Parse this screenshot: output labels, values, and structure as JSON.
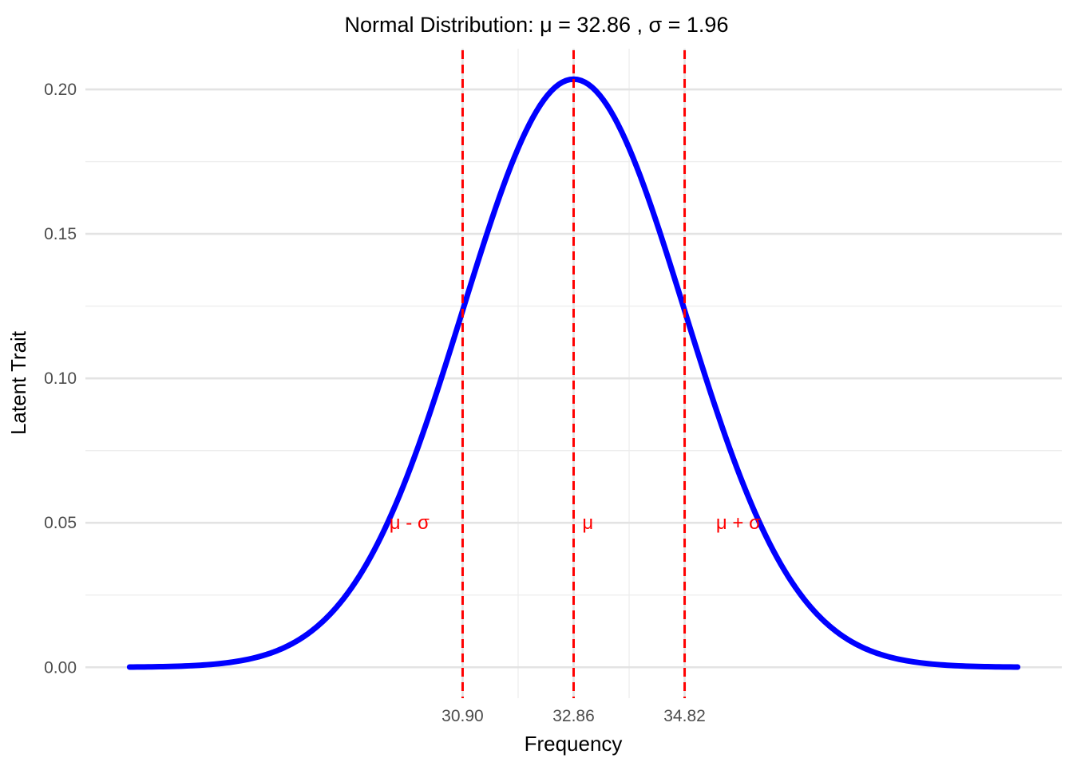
{
  "chart_data": {
    "type": "line",
    "title": "Normal Distribution: μ = 32.86 , σ = 1.96",
    "xlabel": "Frequency",
    "ylabel": "Latent Trait",
    "legend": "none",
    "background": "#FFFFFF",
    "grid": {
      "major_color": "#E3E3E3",
      "minor_color": "#EDEDED",
      "major_width": 2.6,
      "minor_width": 1.3
    },
    "tick_label_color": "#4D4D4D",
    "series": [
      {
        "name": "normal-pdf-curve",
        "color": "#0000FF",
        "line_width": 7,
        "distribution": {
          "mu": 32.86,
          "sigma": 1.96,
          "peak_density": 0.2035
        },
        "x_range": [
          25.02,
          40.7
        ]
      }
    ],
    "x_axis": {
      "range": [
        24.24,
        41.48
      ],
      "ticks": [
        {
          "value": 30.9,
          "label": "30.90"
        },
        {
          "value": 32.86,
          "label": "32.86"
        },
        {
          "value": 34.82,
          "label": "34.82"
        }
      ],
      "minor_ticks": [
        31.88,
        33.84
      ]
    },
    "y_axis": {
      "range": [
        -0.0107,
        0.2141
      ],
      "ticks": [
        {
          "value": 0.0,
          "label": "0.00"
        },
        {
          "value": 0.05,
          "label": "0.05"
        },
        {
          "value": 0.1,
          "label": "0.10"
        },
        {
          "value": 0.15,
          "label": "0.15"
        },
        {
          "value": 0.2,
          "label": "0.20"
        }
      ],
      "minor_ticks": [
        0.025,
        0.075,
        0.125,
        0.175
      ]
    },
    "vlines": {
      "color": "#FF0000",
      "width": 3,
      "dash": [
        11,
        7
      ],
      "positions": [
        {
          "x": 30.9,
          "name": "mu-minus-sigma"
        },
        {
          "x": 32.86,
          "name": "mu"
        },
        {
          "x": 34.82,
          "name": "mu-plus-sigma"
        }
      ]
    },
    "annotations": {
      "color": "#FF0000",
      "items": [
        {
          "text": "μ - σ",
          "x": 29.96,
          "y": 0.05,
          "name": "mu-minus-sigma-label"
        },
        {
          "text": "μ",
          "x": 33.11,
          "y": 0.05,
          "name": "mu-label"
        },
        {
          "text": "μ + σ",
          "x": 35.77,
          "y": 0.05,
          "name": "mu-plus-sigma-label"
        }
      ]
    }
  }
}
